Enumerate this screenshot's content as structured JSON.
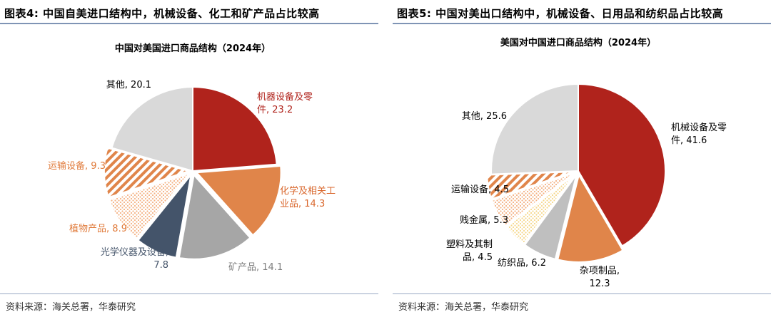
{
  "panels": [
    {
      "figure_title": "图表4:  中国自美进口结构中，机械设备、化工和矿产品占比较高",
      "source": "资料来源：海关总署，华泰研究",
      "chart_data": {
        "type": "pie",
        "title": "中国对美国进口商品结构（2024年）",
        "slices": [
          {
            "label_lines": [
              "机器设备及零",
              "件, 23.2"
            ],
            "name": "机器设备及零件",
            "value": 23.2,
            "color": "#b0231c",
            "pattern": "solid",
            "label_color": "#b0231c"
          },
          {
            "label_lines": [
              "化学及相关工",
              "业品, 14.3"
            ],
            "name": "化学及相关工业品",
            "value": 14.3,
            "color": "#e0854a",
            "pattern": "solid",
            "label_color": "#d9662b"
          },
          {
            "label_lines": [
              "矿产品, 14.1"
            ],
            "name": "矿产品",
            "value": 14.1,
            "color": "#a6a6a6",
            "pattern": "solid",
            "label_color": "#7f7f7f"
          },
          {
            "label_lines": [
              "光学仪器及设备,",
              "7.8"
            ],
            "name": "光学仪器及设备",
            "value": 7.8,
            "color": "#44546a",
            "pattern": "solid",
            "label_color": "#44546a"
          },
          {
            "label_lines": [
              "植物产品, 8.9"
            ],
            "name": "植物产品",
            "value": 8.9,
            "color": "#f4b183",
            "pattern": "dots",
            "label_color": "#e07a3a"
          },
          {
            "label_lines": [
              "运输设备, 9.3"
            ],
            "name": "运输设备",
            "value": 9.3,
            "color": "#e0854a",
            "pattern": "stripes",
            "label_color": "#e07a3a"
          },
          {
            "label_lines": [
              "其他, 20.1"
            ],
            "name": "其他",
            "value": 20.1,
            "color": "#d9d9d9",
            "pattern": "solid",
            "label_color": "#000000"
          }
        ]
      }
    },
    {
      "figure_title": "图表5:  中国对美出口结构中，机械设备、日用品和纺织品占比较高",
      "source": "资料来源：海关总署，华泰研究",
      "chart_data": {
        "type": "pie",
        "title": "美国对中国进口商品结构（2024年）",
        "slices": [
          {
            "label_lines": [
              "机械设备及零",
              "件, 41.6"
            ],
            "name": "机械设备及零件",
            "value": 41.6,
            "color": "#b0231c",
            "pattern": "solid",
            "label_color": "#000000"
          },
          {
            "label_lines": [
              "杂项制品,",
              "12.3"
            ],
            "name": "杂项制品",
            "value": 12.3,
            "color": "#e0854a",
            "pattern": "solid",
            "label_color": "#000000"
          },
          {
            "label_lines": [
              "纺织品, 6.2"
            ],
            "name": "纺织品",
            "value": 6.2,
            "color": "#bfbfbf",
            "pattern": "solid",
            "label_color": "#000000"
          },
          {
            "label_lines": [
              "塑料及其制",
              "品, 4.5"
            ],
            "name": "塑料及其制品",
            "value": 4.5,
            "color": "#f5d78a",
            "pattern": "dots",
            "label_color": "#000000"
          },
          {
            "label_lines": [
              "贱金属, 5.3"
            ],
            "name": "贱金属",
            "value": 5.3,
            "color": "#f4b183",
            "pattern": "dots",
            "label_color": "#000000"
          },
          {
            "label_lines": [
              "运输设备, 4.5"
            ],
            "name": "运输设备",
            "value": 4.5,
            "color": "#e0854a",
            "pattern": "stripes",
            "label_color": "#000000"
          },
          {
            "label_lines": [
              "其他, 25.6"
            ],
            "name": "其他",
            "value": 25.6,
            "color": "#d9d9d9",
            "pattern": "solid",
            "label_color": "#000000"
          }
        ]
      }
    }
  ]
}
